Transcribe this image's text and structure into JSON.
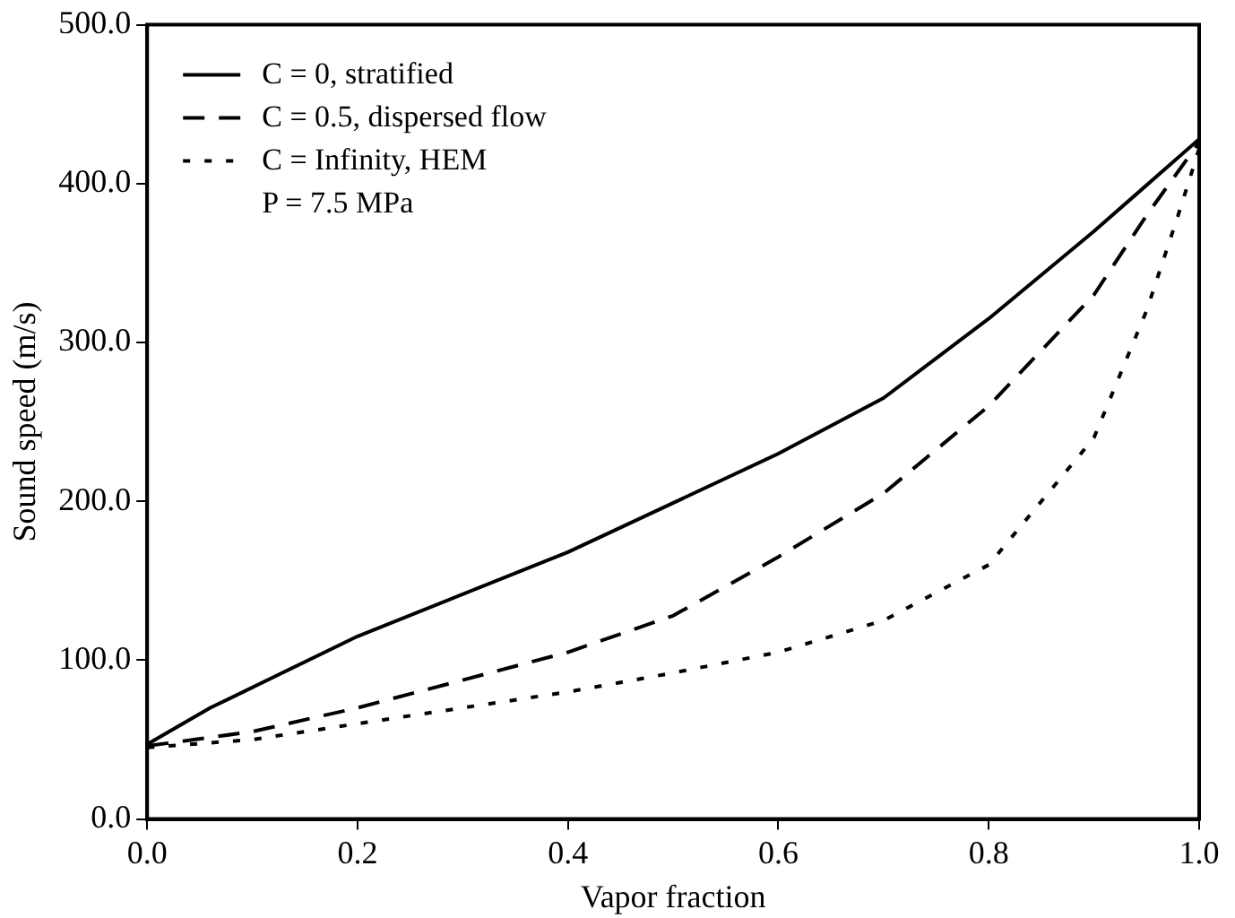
{
  "chart_data": {
    "type": "line",
    "xlabel": "Vapor fraction",
    "ylabel": "Sound speed (m/s)",
    "xlim": [
      0,
      1
    ],
    "xticks": [
      {
        "value": 0,
        "label": "0.0"
      },
      {
        "value": 0.2,
        "label": "0.2"
      },
      {
        "value": 0.4,
        "label": "0.4"
      },
      {
        "value": 0.6,
        "label": "0.6"
      },
      {
        "value": 0.8,
        "label": "0.8"
      },
      {
        "value": 1,
        "label": "1.0"
      }
    ],
    "ylim": [
      0,
      500
    ],
    "yticks": [
      {
        "value": 0,
        "label": "0.0"
      },
      {
        "value": 100,
        "label": "100.0"
      },
      {
        "value": 200,
        "label": "200.0"
      },
      {
        "value": 300,
        "label": "300.0"
      },
      {
        "value": 400,
        "label": "400.0"
      },
      {
        "value": 500,
        "label": "500.0"
      }
    ],
    "grid": false,
    "legend": "top left",
    "marker": "none",
    "annotations": [
      "P = 7.5 MPa"
    ],
    "series": [
      {
        "name": "C = 0, stratified",
        "color": "#000000",
        "line_style": "solid",
        "x": [
          0,
          0.06,
          0.2,
          0.4,
          0.6,
          0.7,
          0.8,
          0.9,
          1
        ],
        "values": [
          47,
          70,
          115,
          168,
          230,
          265,
          315,
          370,
          428
        ]
      },
      {
        "name": "C = 0.5, dispersed flow",
        "color": "#000000",
        "line_style": "dashed",
        "x": [
          0,
          0.1,
          0.2,
          0.4,
          0.5,
          0.6,
          0.7,
          0.8,
          0.9,
          0.95,
          1
        ],
        "values": [
          46,
          55,
          70,
          105,
          128,
          165,
          205,
          260,
          330,
          380,
          426
        ]
      },
      {
        "name": "C = Infinity, HEM",
        "color": "#000000",
        "line_style": "dotted",
        "x": [
          0,
          0.1,
          0.2,
          0.4,
          0.5,
          0.6,
          0.7,
          0.8,
          0.9,
          0.95,
          0.98,
          1
        ],
        "values": [
          45,
          50,
          60,
          80,
          92,
          105,
          125,
          160,
          240,
          320,
          380,
          422
        ]
      }
    ]
  }
}
